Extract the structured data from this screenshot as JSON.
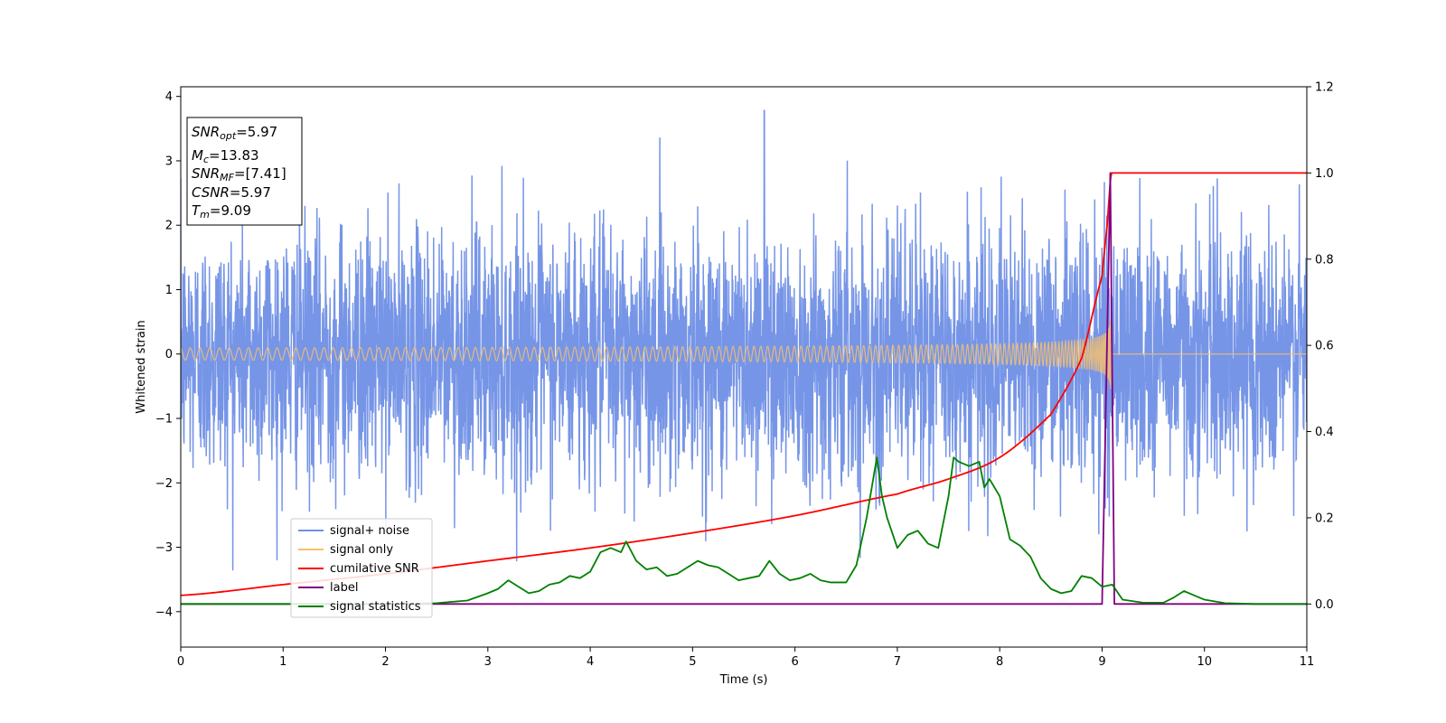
{
  "chart_data": {
    "type": "line",
    "xlabel": "Time (s)",
    "ylabel": "Whitened strain",
    "xlim": [
      0,
      11
    ],
    "ylim": [
      -4.55,
      4.15
    ],
    "y2lim": [
      -0.1,
      1.2
    ],
    "x_ticks": [
      "0",
      "1",
      "2",
      "3",
      "4",
      "5",
      "6",
      "7",
      "8",
      "9",
      "10",
      "11"
    ],
    "y_ticks": [
      "−4",
      "−3",
      "−2",
      "−1",
      "0",
      "1",
      "2",
      "3",
      "4"
    ],
    "y_tick_values": [
      -4,
      -3,
      -2,
      -1,
      0,
      1,
      2,
      3,
      4
    ],
    "y2_ticks": [
      "0.0",
      "0.2",
      "0.4",
      "0.6",
      "0.8",
      "1.0",
      "1.2"
    ],
    "y2_tick_values": [
      0,
      0.2,
      0.4,
      0.6,
      0.8,
      1.0,
      1.2
    ],
    "legend_placement": "lower-left",
    "stats_box": {
      "snr_opt": {
        "base": "SNR",
        "sub": "opt",
        "value": "=5.97"
      },
      "mc": {
        "base": "M",
        "sub": "c",
        "value": "=13.83"
      },
      "snr_mf": {
        "base": "SNR",
        "sub": "MF",
        "value": "=[7.41]"
      },
      "csnr": {
        "base": "CSNR",
        "sub": "",
        "value": "=5.97"
      },
      "tm": {
        "base": "T",
        "sub": "m",
        "value": "=9.09"
      }
    },
    "series": [
      {
        "name": "signal+ noise",
        "color": "#6f8fe6",
        "axis": "left",
        "description_values": {
          "noise_sigma": 1.0,
          "typical_max": 3.2,
          "peak": 3.78
        }
      },
      {
        "name": "signal only",
        "color": "#f5c070",
        "axis": "left",
        "chirp": {
          "merger_time": 9.09,
          "peak_amplitude": 0.65
        }
      },
      {
        "name": "cumilative SNR",
        "color": "#ff0000",
        "axis": "right",
        "x": [
          0,
          1,
          2,
          3,
          4,
          5,
          6,
          7,
          7.5,
          8,
          8.5,
          8.8,
          9.0,
          9.05,
          9.09,
          11
        ],
        "y": [
          0.02,
          0.045,
          0.07,
          0.1,
          0.13,
          0.165,
          0.205,
          0.255,
          0.29,
          0.34,
          0.44,
          0.57,
          0.76,
          0.88,
          1.0,
          1.0
        ]
      },
      {
        "name": "label",
        "color": "#800080",
        "axis": "right",
        "x": [
          0,
          9.0,
          9.04,
          9.08,
          9.1,
          9.12,
          11
        ],
        "y": [
          0,
          0,
          0.5,
          1.0,
          0.5,
          0,
          0
        ]
      },
      {
        "name": "signal statistics",
        "color": "#008000",
        "axis": "right",
        "x": [
          0,
          1,
          2,
          2.5,
          2.8,
          3.0,
          3.1,
          3.2,
          3.3,
          3.4,
          3.5,
          3.6,
          3.7,
          3.8,
          3.9,
          4.0,
          4.1,
          4.2,
          4.3,
          4.35,
          4.45,
          4.55,
          4.65,
          4.75,
          4.85,
          4.95,
          5.05,
          5.15,
          5.25,
          5.35,
          5.45,
          5.55,
          5.65,
          5.75,
          5.85,
          5.95,
          6.05,
          6.15,
          6.25,
          6.35,
          6.5,
          6.6,
          6.7,
          6.75,
          6.8,
          6.85,
          6.9,
          7.0,
          7.1,
          7.2,
          7.3,
          7.4,
          7.5,
          7.55,
          7.6,
          7.7,
          7.8,
          7.85,
          7.9,
          8.0,
          8.1,
          8.2,
          8.3,
          8.4,
          8.5,
          8.6,
          8.7,
          8.8,
          8.9,
          9.0,
          9.1,
          9.2,
          9.4,
          9.6,
          9.7,
          9.8,
          9.9,
          10.0,
          10.2,
          10.5,
          11
        ],
        "y": [
          0.0,
          0.0,
          0.0,
          0.002,
          0.008,
          0.025,
          0.035,
          0.055,
          0.04,
          0.025,
          0.03,
          0.045,
          0.05,
          0.065,
          0.06,
          0.075,
          0.12,
          0.13,
          0.12,
          0.145,
          0.1,
          0.08,
          0.085,
          0.065,
          0.07,
          0.085,
          0.1,
          0.09,
          0.085,
          0.07,
          0.055,
          0.06,
          0.065,
          0.1,
          0.07,
          0.055,
          0.06,
          0.07,
          0.055,
          0.05,
          0.05,
          0.09,
          0.2,
          0.27,
          0.34,
          0.25,
          0.2,
          0.13,
          0.16,
          0.17,
          0.14,
          0.13,
          0.25,
          0.34,
          0.33,
          0.32,
          0.33,
          0.27,
          0.29,
          0.25,
          0.15,
          0.135,
          0.11,
          0.06,
          0.035,
          0.025,
          0.03,
          0.065,
          0.06,
          0.04,
          0.045,
          0.01,
          0.003,
          0.003,
          0.015,
          0.03,
          0.02,
          0.01,
          0.002,
          0.0,
          0.0
        ]
      }
    ]
  }
}
